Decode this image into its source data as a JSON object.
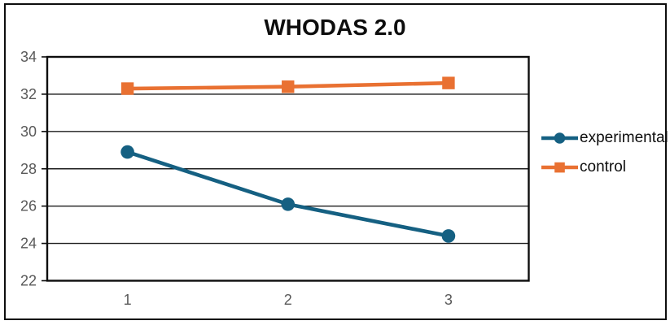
{
  "chart_data": {
    "type": "line",
    "title": "WHODAS 2.0",
    "categories": [
      "1",
      "2",
      "3"
    ],
    "series": [
      {
        "name": "experimental",
        "values": [
          28.9,
          26.1,
          24.4
        ],
        "color": "#156082",
        "marker": "circle"
      },
      {
        "name": "control",
        "values": [
          32.3,
          32.4,
          32.6
        ],
        "color": "#E97132",
        "marker": "square"
      }
    ],
    "ylim": [
      22,
      34
    ],
    "y_ticks": [
      22,
      24,
      26,
      28,
      30,
      32,
      34
    ],
    "xlabel": "",
    "ylabel": "",
    "grid": "horizontal",
    "legend_position": "right",
    "axis_label_color": "#595959",
    "gridline_color": "#1c1c1c",
    "plot_border_color": "#0d0d0d"
  }
}
